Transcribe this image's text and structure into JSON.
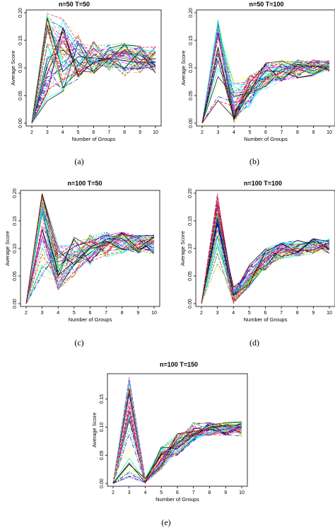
{
  "chart_data": [
    {
      "type": "line",
      "title": "n=50 T=50",
      "xlabel": "Number of Groups",
      "ylabel": "Average Score",
      "x": [
        2,
        3,
        4,
        5,
        6,
        7,
        8,
        9,
        10
      ],
      "ylim": [
        0,
        0.2
      ],
      "yticks": [
        "0.00",
        "0.05",
        "0.10",
        "0.15",
        "0.20"
      ],
      "xticks": [
        "2",
        "3",
        "4",
        "5",
        "6",
        "7",
        "8",
        "9",
        "10"
      ],
      "caption": "(a)",
      "series_count": 50,
      "series_summary": {
        "mean": [
          0.0,
          0.165,
          0.11,
          0.112,
          0.115,
          0.118,
          0.117,
          0.116,
          0.113
        ],
        "low": [
          0.0,
          0.04,
          0.05,
          0.08,
          0.09,
          0.095,
          0.085,
          0.09,
          0.09
        ],
        "high": [
          0.0,
          0.2,
          0.19,
          0.16,
          0.15,
          0.145,
          0.145,
          0.14,
          0.14
        ]
      }
    },
    {
      "type": "line",
      "title": "n=50 T=100",
      "xlabel": "Number of Groups",
      "ylabel": "Average Score",
      "x": [
        2,
        3,
        4,
        5,
        6,
        7,
        8,
        9,
        10
      ],
      "ylim": [
        0,
        0.2
      ],
      "yticks": [
        "0.00",
        "0.05",
        "0.10",
        "0.15",
        "0.20"
      ],
      "xticks": [
        "2",
        "3",
        "4",
        "5",
        "6",
        "7",
        "8",
        "9",
        "10"
      ],
      "caption": "(b)",
      "series_count": 50,
      "series_summary": {
        "mean": [
          0.0,
          0.155,
          0.03,
          0.06,
          0.08,
          0.095,
          0.1,
          0.102,
          0.103
        ],
        "low": [
          0.0,
          0.04,
          0.0,
          0.03,
          0.06,
          0.075,
          0.08,
          0.085,
          0.09
        ],
        "high": [
          0.0,
          0.19,
          0.075,
          0.09,
          0.11,
          0.115,
          0.115,
          0.115,
          0.115
        ]
      }
    },
    {
      "type": "line",
      "title": "n=100 T=50",
      "xlabel": "Number of Groups",
      "ylabel": "Average Score",
      "x": [
        2,
        3,
        4,
        5,
        6,
        7,
        8,
        9,
        10
      ],
      "ylim": [
        0,
        0.2
      ],
      "yticks": [
        "0.00",
        "0.05",
        "0.10",
        "0.15",
        "0.20"
      ],
      "xticks": [
        "2",
        "3",
        "4",
        "5",
        "6",
        "7",
        "8",
        "9",
        "10"
      ],
      "caption": "(c)",
      "series_count": 50,
      "series_summary": {
        "mean": [
          0.0,
          0.16,
          0.06,
          0.085,
          0.105,
          0.112,
          0.112,
          0.11,
          0.108
        ],
        "low": [
          0.0,
          0.05,
          0.02,
          0.05,
          0.07,
          0.085,
          0.09,
          0.09,
          0.09
        ],
        "high": [
          0.0,
          0.2,
          0.11,
          0.12,
          0.125,
          0.13,
          0.13,
          0.125,
          0.125
        ]
      }
    },
    {
      "type": "line",
      "title": "n=100 T=100",
      "xlabel": "Number of Groups",
      "ylabel": "Average Score",
      "x": [
        2,
        3,
        4,
        5,
        6,
        7,
        8,
        9,
        10
      ],
      "ylim": [
        0,
        0.2
      ],
      "yticks": [
        "0.00",
        "0.05",
        "0.10",
        "0.15",
        "0.20"
      ],
      "xticks": [
        "2",
        "3",
        "4",
        "5",
        "6",
        "7",
        "8",
        "9",
        "10"
      ],
      "caption": "(d)",
      "series_count": 50,
      "series_summary": {
        "mean": [
          0.0,
          0.15,
          0.012,
          0.05,
          0.08,
          0.098,
          0.102,
          0.104,
          0.103
        ],
        "low": [
          0.0,
          0.06,
          0.0,
          0.03,
          0.06,
          0.08,
          0.085,
          0.09,
          0.09
        ],
        "high": [
          0.0,
          0.2,
          0.03,
          0.07,
          0.1,
          0.112,
          0.115,
          0.118,
          0.118
        ]
      }
    },
    {
      "type": "line",
      "title": "n=100 T=150",
      "xlabel": "Number of Groups",
      "ylabel": "Average Score",
      "x": [
        2,
        3,
        4,
        5,
        6,
        7,
        8,
        9,
        10
      ],
      "ylim": [
        0,
        0.19
      ],
      "yticks": [
        "0.00",
        "0.05",
        "0.10",
        "0.15"
      ],
      "xticks": [
        "2",
        "3",
        "4",
        "5",
        "6",
        "7",
        "8",
        "9",
        "10"
      ],
      "caption": "(e)",
      "series_count": 50,
      "series_summary": {
        "mean": [
          0.0,
          0.14,
          0.002,
          0.045,
          0.07,
          0.09,
          0.097,
          0.099,
          0.098
        ],
        "low": [
          0.0,
          0.01,
          0.0,
          0.025,
          0.05,
          0.075,
          0.085,
          0.085,
          0.083
        ],
        "high": [
          0.0,
          0.19,
          0.01,
          0.065,
          0.09,
          0.11,
          0.11,
          0.11,
          0.11
        ]
      }
    }
  ],
  "palette": [
    "#000000",
    "#ff0000",
    "#00cd00",
    "#0000ff",
    "#00ffff",
    "#ff00ff",
    "#ffff00",
    "#bebebe"
  ]
}
